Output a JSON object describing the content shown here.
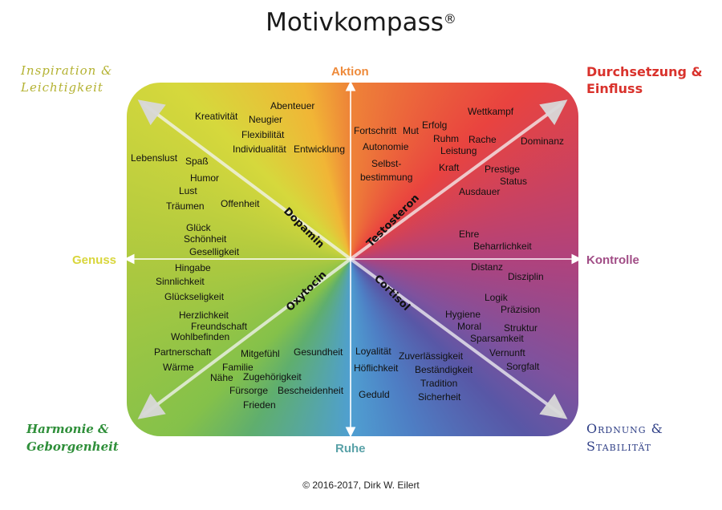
{
  "title": "Motivkompass",
  "title_mark": "®",
  "axes": {
    "top": "Aktion",
    "bottom": "Ruhe",
    "left": "Genuss",
    "right": "Kontrolle"
  },
  "corners": {
    "top_left": "Inspiration &\nLeichtigkeit",
    "top_right": "Durchsetzung &\nEinfluss",
    "bottom_left": "Harmonie &\nGeborgenheit",
    "bottom_right": "Ordnung &\nStabilität"
  },
  "hormones": {
    "dopamin": "Dopamin",
    "testosteron": "Testosteron",
    "oxytocin": "Oxytocin",
    "cortisol": "Cortisol"
  },
  "words": {
    "kreativitaet": "Kreativität",
    "abenteuer": "Abenteuer",
    "neugier": "Neugier",
    "flexibilitaet": "Flexibilität",
    "individualitaet": "Individualität",
    "entwicklung": "Entwicklung",
    "lebenslust": "Lebenslust",
    "spass": "Spaß",
    "humor": "Humor",
    "lust": "Lust",
    "traeumen": "Träumen",
    "offenheit": "Offenheit",
    "glueck": "Glück",
    "schoenheit": "Schönheit",
    "geselligkeit": "Geselligkeit",
    "fortschritt": "Fortschritt",
    "mut": "Mut",
    "erfolg": "Erfolg",
    "autonomie": "Autonomie",
    "ruhm": "Ruhm",
    "leistung": "Leistung",
    "wettkampf": "Wettkampf",
    "rache": "Rache",
    "dominanz": "Dominanz",
    "selbstbestimmung_1": "Selbst-",
    "selbstbestimmung_2": "bestimmung",
    "kraft": "Kraft",
    "prestige": "Prestige",
    "status": "Status",
    "ausdauer": "Ausdauer",
    "ehre": "Ehre",
    "beharrlichkeit": "Beharrlichkeit",
    "hingabe": "Hingabe",
    "sinnlichkeit": "Sinnlichkeit",
    "glueckseligkeit": "Glückseligkeit",
    "herzlichkeit": "Herzlichkeit",
    "freundschaft": "Freundschaft",
    "wohlbefinden": "Wohlbefinden",
    "partnerschaft": "Partnerschaft",
    "mitgefuehl": "Mitgefühl",
    "gesundheit": "Gesundheit",
    "waerme": "Wärme",
    "familie": "Familie",
    "naehe": "Nähe",
    "zugehoerigkeit": "Zugehörigkeit",
    "fuersorge": "Fürsorge",
    "bescheidenheit": "Bescheidenheit",
    "frieden": "Frieden",
    "distanz": "Distanz",
    "disziplin": "Disziplin",
    "logik": "Logik",
    "praezision": "Präzision",
    "hygiene": "Hygiene",
    "moral": "Moral",
    "struktur": "Struktur",
    "sparsamkeit": "Sparsamkeit",
    "vernunft": "Vernunft",
    "sorgfalt": "Sorgfalt",
    "loyalitaet": "Loyalität",
    "zuverlaessigkeit": "Zuverlässigkeit",
    "hoeflichkeit": "Höflichkeit",
    "bestaendigkeit": "Beständigkeit",
    "tradition": "Tradition",
    "geduld": "Geduld",
    "sicherheit": "Sicherheit"
  },
  "footer": "© 2016-2017, Dirk W. Eilert",
  "colors": {
    "aktion": "#ee8a3a",
    "ruhe": "#5aa2a8",
    "genuss": "#d9d63c",
    "kontrolle": "#a14d86",
    "inspiration": "#b4b232",
    "durchsetzung": "#d9322c",
    "harmonie": "#2f8f3a",
    "ordnung": "#2f3f86"
  }
}
